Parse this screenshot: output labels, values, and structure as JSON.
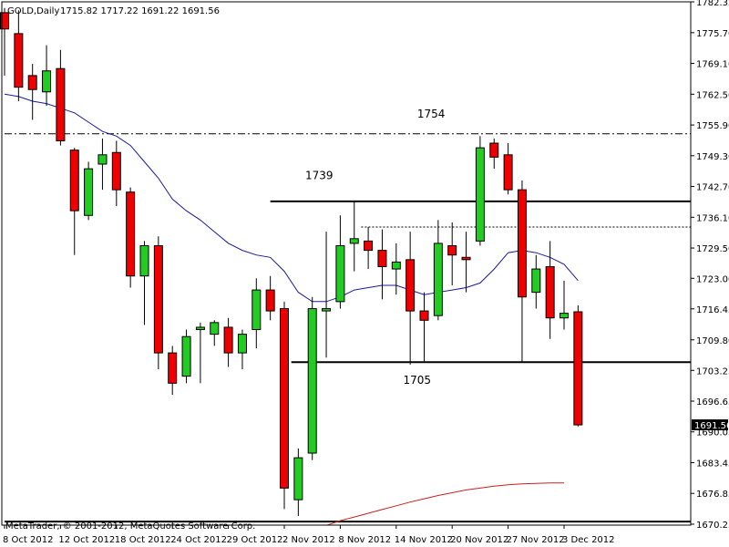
{
  "header": {
    "symbol": "GOLD,Daily",
    "ohlc": "1715.82 1717.22 1691.22 1691.56"
  },
  "copyright": "MetaTrader, © 2001-2012, MetaQuotes Software Corp.",
  "colors": {
    "bull": "#22cc22",
    "bear": "#ee0000",
    "ma_fast": "#1a1aa0",
    "ma_slow": "#cc2020",
    "price_label_bg": "#000000"
  },
  "chart_data": {
    "type": "candlestick",
    "ylim": [
      1670.05,
      1782.32
    ],
    "y_ticks": [
      "1782.32",
      "1775.70",
      "1769.10",
      "1762.50",
      "1755.90",
      "1749.30",
      "1742.70",
      "1736.10",
      "1729.50",
      "1723.00",
      "1716.45",
      "1709.80",
      "1703.25",
      "1696.65",
      "1690.05",
      "1683.45",
      "1676.85",
      "1670.25"
    ],
    "x_tick_labels": [
      "8 Oct 2012",
      "12 Oct 2012",
      "18 Oct 2012",
      "24 Oct 2012",
      "29 Oct 2012",
      "2 Nov 2012",
      "8 Nov 2012",
      "14 Nov 2012",
      "20 Nov 2012",
      "27 Nov 2012",
      "3 Dec 2012"
    ],
    "current_price": "1691.56",
    "candles": [
      {
        "o": 1780.0,
        "h": 1781.0,
        "l": 1766.5,
        "c": 1776.5
      },
      {
        "o": 1775.5,
        "h": 1780.5,
        "l": 1761.0,
        "c": 1764.0
      },
      {
        "o": 1766.5,
        "h": 1769.0,
        "l": 1757.0,
        "c": 1763.5
      },
      {
        "o": 1763.0,
        "h": 1773.0,
        "l": 1760.0,
        "c": 1767.5
      },
      {
        "o": 1768.0,
        "h": 1772.0,
        "l": 1751.5,
        "c": 1752.5
      },
      {
        "o": 1750.5,
        "h": 1751.0,
        "l": 1728.0,
        "c": 1737.5
      },
      {
        "o": 1736.5,
        "h": 1748.0,
        "l": 1735.5,
        "c": 1746.5
      },
      {
        "o": 1747.5,
        "h": 1753.0,
        "l": 1742.0,
        "c": 1749.5
      },
      {
        "o": 1750.0,
        "h": 1752.5,
        "l": 1738.5,
        "c": 1742.0
      },
      {
        "o": 1741.5,
        "h": 1742.5,
        "l": 1721.0,
        "c": 1723.5
      },
      {
        "o": 1723.5,
        "h": 1731.0,
        "l": 1713.0,
        "c": 1730.0
      },
      {
        "o": 1730.0,
        "h": 1732.0,
        "l": 1703.5,
        "c": 1707.0
      },
      {
        "o": 1707.0,
        "h": 1708.5,
        "l": 1698.0,
        "c": 1700.5
      },
      {
        "o": 1702.0,
        "h": 1712.0,
        "l": 1700.5,
        "c": 1710.5
      },
      {
        "o": 1712.0,
        "h": 1713.5,
        "l": 1700.5,
        "c": 1712.5
      },
      {
        "o": 1711.0,
        "h": 1714.0,
        "l": 1708.5,
        "c": 1713.5
      },
      {
        "o": 1712.5,
        "h": 1714.5,
        "l": 1704.0,
        "c": 1707.0
      },
      {
        "o": 1707.0,
        "h": 1712.0,
        "l": 1703.5,
        "c": 1711.0
      },
      {
        "o": 1712.0,
        "h": 1723.0,
        "l": 1708.0,
        "c": 1720.5
      },
      {
        "o": 1720.5,
        "h": 1723.5,
        "l": 1714.0,
        "c": 1716.0
      },
      {
        "o": 1716.5,
        "h": 1718.0,
        "l": 1673.5,
        "c": 1678.0
      },
      {
        "o": 1675.5,
        "h": 1686.5,
        "l": 1672.0,
        "c": 1684.5
      },
      {
        "o": 1685.5,
        "h": 1719.0,
        "l": 1684.0,
        "c": 1716.5
      },
      {
        "o": 1716.0,
        "h": 1733.0,
        "l": 1706.0,
        "c": 1716.5
      },
      {
        "o": 1718.0,
        "h": 1736.5,
        "l": 1716.5,
        "c": 1730.0
      },
      {
        "o": 1730.5,
        "h": 1739.5,
        "l": 1724.5,
        "c": 1731.5
      },
      {
        "o": 1731.0,
        "h": 1734.0,
        "l": 1725.0,
        "c": 1729.0
      },
      {
        "o": 1729.0,
        "h": 1733.5,
        "l": 1718.5,
        "c": 1725.5
      },
      {
        "o": 1725.0,
        "h": 1730.5,
        "l": 1719.5,
        "c": 1726.5
      },
      {
        "o": 1727.0,
        "h": 1733.0,
        "l": 1704.5,
        "c": 1716.0
      },
      {
        "o": 1716.0,
        "h": 1720.0,
        "l": 1705.0,
        "c": 1714.0
      },
      {
        "o": 1715.0,
        "h": 1735.5,
        "l": 1714.0,
        "c": 1730.5
      },
      {
        "o": 1730.0,
        "h": 1735.0,
        "l": 1721.5,
        "c": 1728.0
      },
      {
        "o": 1727.5,
        "h": 1733.0,
        "l": 1720.0,
        "c": 1727.0
      },
      {
        "o": 1731.0,
        "h": 1753.5,
        "l": 1730.0,
        "c": 1751.0
      },
      {
        "o": 1752.0,
        "h": 1753.0,
        "l": 1746.5,
        "c": 1749.0
      },
      {
        "o": 1749.5,
        "h": 1752.0,
        "l": 1741.0,
        "c": 1742.0
      },
      {
        "o": 1742.0,
        "h": 1744.0,
        "l": 1705.0,
        "c": 1719.0
      },
      {
        "o": 1720.0,
        "h": 1728.0,
        "l": 1716.5,
        "c": 1725.0
      },
      {
        "o": 1725.5,
        "h": 1731.0,
        "l": 1710.0,
        "c": 1714.5
      },
      {
        "o": 1714.5,
        "h": 1722.5,
        "l": 1712.0,
        "c": 1715.5
      },
      {
        "o": 1715.82,
        "h": 1717.22,
        "l": 1691.22,
        "c": 1691.56
      }
    ],
    "ma_fast": [
      1762.5,
      1762.0,
      1761.0,
      1760.5,
      1759.5,
      1758.5,
      1756.5,
      1754.5,
      1753.5,
      1751.5,
      1748.0,
      1744.5,
      1740.0,
      1737.5,
      1735.5,
      1733.0,
      1730.5,
      1729.0,
      1728.0,
      1727.5,
      1724.5,
      1720.0,
      1718.0,
      1718.0,
      1719.0,
      1720.5,
      1721.0,
      1721.5,
      1721.5,
      1720.5,
      1719.5,
      1720.0,
      1720.5,
      1721.0,
      1722.0,
      1725.0,
      1728.5,
      1729.0,
      1728.5,
      1727.5,
      1726.0,
      1722.5
    ],
    "ma_slow": {
      "start_index": 23,
      "values": [
        1670.0,
        1671.0,
        1671.8,
        1672.6,
        1673.4,
        1674.2,
        1675.0,
        1675.7,
        1676.4,
        1677.0,
        1677.6,
        1678.0,
        1678.4,
        1678.7,
        1678.9,
        1679.0,
        1679.1,
        1679.1
      ]
    },
    "hlines": [
      {
        "y": 1754.0,
        "style": "dashdot",
        "x_from": 0
      },
      {
        "y": 1739.5,
        "style": "solid",
        "x_from": 19
      },
      {
        "y": 1734.0,
        "style": "dotted",
        "x_from": 25.5
      },
      {
        "y": 1705.0,
        "style": "solid",
        "x_from": 20.5
      },
      {
        "y": 1670.8,
        "style": "solid",
        "x_from": 0
      }
    ],
    "annotations": [
      {
        "text": "1754",
        "x": 29.5,
        "y": 1757.5
      },
      {
        "text": "1739",
        "x": 21.5,
        "y": 1744.3
      },
      {
        "text": "1705",
        "x": 28.5,
        "y": 1700.4
      }
    ]
  }
}
